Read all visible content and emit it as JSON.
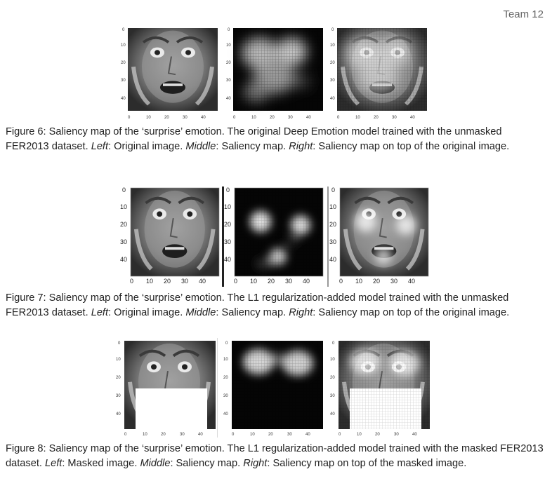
{
  "header": {
    "team": "Team 12"
  },
  "axis_ticks": [
    "0",
    "10",
    "20",
    "30",
    "40"
  ],
  "figures": [
    {
      "caption": {
        "lead": "Figure 6: Saliency map of the ‘surprise’ emotion. The original Deep Emotion model trained with the unmasked FER2013 dataset. ",
        "left_label": "Left",
        "left_text": ": Original image. ",
        "middle_label": "Middle",
        "middle_text": ": Saliency map. ",
        "right_label": "Right",
        "right_text": ": Saliency map on top of the original image."
      }
    },
    {
      "caption": {
        "lead": "Figure 7: Saliency map of the ‘surprise’ emotion. The L1 regularization-added model trained with the unmasked FER2013 dataset. ",
        "left_label": "Left",
        "left_text": ": Original image. ",
        "middle_label": "Middle",
        "middle_text": ": Saliency map. ",
        "right_label": "Right",
        "right_text": ": Saliency map on top of the original image."
      }
    },
    {
      "caption": {
        "lead": "Figure 8: Saliency map of the ‘surprise’ emotion. The L1 regularization-added model trained with the masked FER2013 dataset. ",
        "left_label": "Left",
        "left_text": ": Masked image. ",
        "middle_label": "Middle",
        "middle_text": ": Saliency map. ",
        "right_label": "Right",
        "right_text": ": Saliency map on top of the masked image."
      }
    }
  ]
}
